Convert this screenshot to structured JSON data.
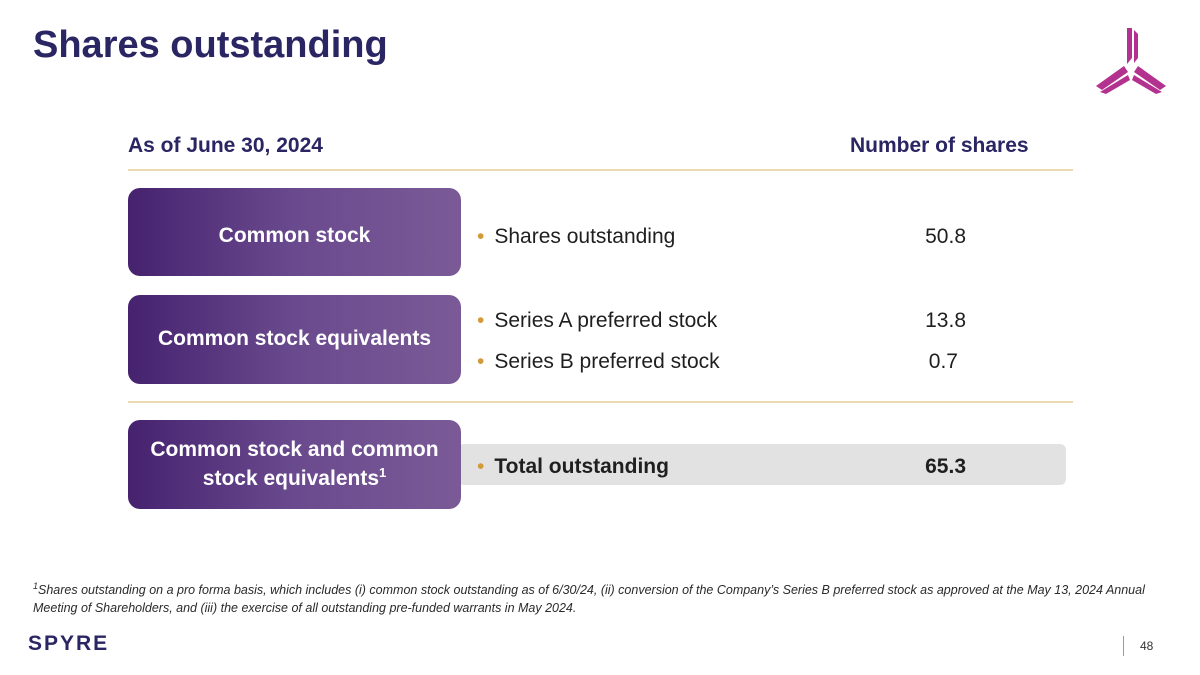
{
  "slide": {
    "title": "Shares outstanding",
    "page_number": "48",
    "brand_name": "SPYRE"
  },
  "table": {
    "header_left": "As of June 30, 2024",
    "header_right": "Number of shares",
    "groups": [
      {
        "label": "Common stock",
        "rows": [
          {
            "label": "Shares outstanding",
            "value": "50.8"
          }
        ]
      },
      {
        "label": "Common stock equivalents",
        "rows": [
          {
            "label": "Series A preferred stock",
            "value": "13.8"
          },
          {
            "label": "Series B preferred stock",
            "value": "0.7"
          }
        ]
      },
      {
        "label_line1": "Common stock and common",
        "label_line2": "stock equivalents",
        "label_sup": "1",
        "rows": [
          {
            "label": "Total outstanding",
            "value": "65.3"
          }
        ]
      }
    ],
    "bullet_glyph": "•"
  },
  "footnote": {
    "marker": "1",
    "text": "Shares outstanding on a pro forma basis, which includes (i) common stock outstanding as of 6/30/24, (ii) conversion of the Company’s Series B preferred stock as approved at the May 13, 2024 Annual Meeting of Shareholders, and (iii) the exercise of all outstanding pre-funded warrants in May 2024."
  },
  "colors": {
    "title": "#2a2563",
    "accent_magenta": "#b3318f",
    "pill_start": "#46226f",
    "pill_end": "#7a5a96",
    "bullet": "#d29a3a",
    "rule": "#ecd9b0"
  }
}
